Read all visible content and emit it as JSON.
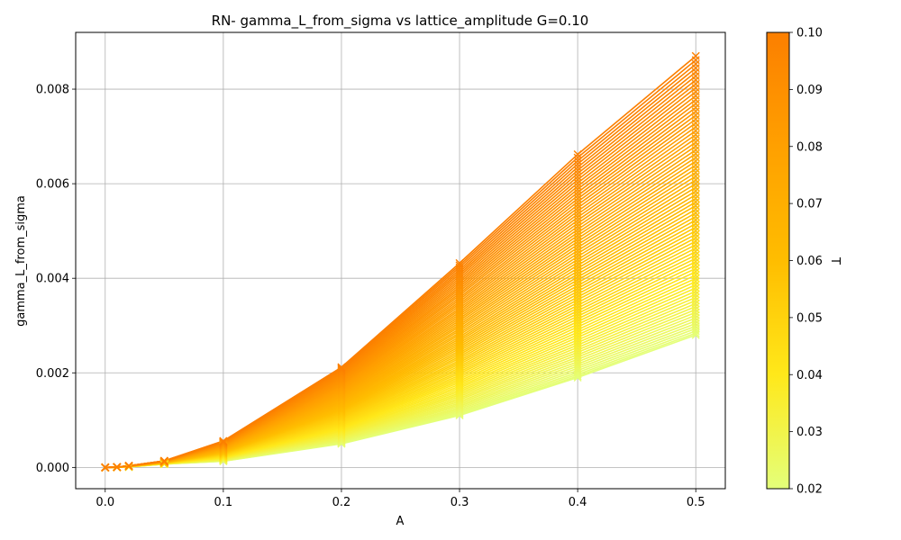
{
  "chart_data": {
    "type": "line",
    "title": "RN- gamma_L_from_sigma vs lattice_amplitude G=0.10",
    "xlabel": "A",
    "ylabel": "gamma_L_from_sigma",
    "x": [
      0.0,
      0.01,
      0.02,
      0.05,
      0.1,
      0.2,
      0.3,
      0.4,
      0.5
    ],
    "xlim": [
      -0.025,
      0.525
    ],
    "ylim": [
      -0.00045,
      0.0092
    ],
    "xticks": [
      "0.0",
      "0.1",
      "0.2",
      "0.3",
      "0.4",
      "0.5"
    ],
    "yticks": [
      "0.000",
      "0.002",
      "0.004",
      "0.006",
      "0.008"
    ],
    "grid": true,
    "marker": "x",
    "series_range": {
      "T_min": 0.02,
      "T_max": 0.1,
      "count": 81,
      "lowest_T_values": [
        0.0,
        2.8e-06,
        1.1e-05,
        6.9e-05,
        0.00013,
        0.0005,
        0.0011,
        0.0019,
        0.0028
      ],
      "highest_T_values": [
        0.0,
        8.7e-06,
        3.5e-05,
        0.00014,
        0.00056,
        0.00212,
        0.00432,
        0.00662,
        0.0087
      ]
    },
    "colorbar": {
      "label": "T",
      "min": 0.02,
      "max": 0.1,
      "ticks": [
        "0.02",
        "0.03",
        "0.04",
        "0.05",
        "0.06",
        "0.07",
        "0.08",
        "0.09",
        "0.10"
      ],
      "colormap": "Wistia",
      "colors": [
        "#e4ff7a",
        "#ffe81a",
        "#ffbd00",
        "#ffa000",
        "#fc7f00"
      ]
    }
  }
}
